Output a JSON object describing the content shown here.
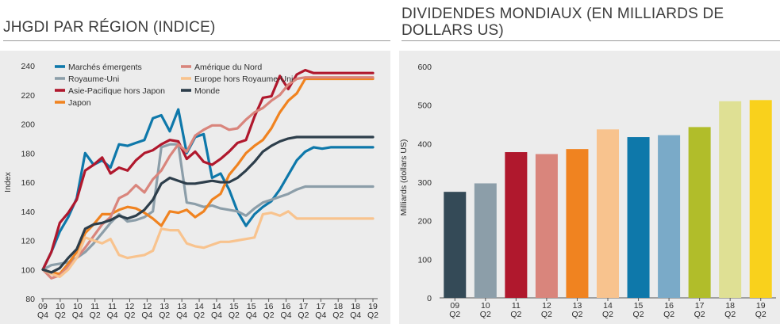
{
  "left_title": "JHGDI PAR RÉGION (INDICE)",
  "right_title": "DIVIDENDES MONDIAUX (EN MILLIARDS DE DOLLARS US)",
  "chart_data": [
    {
      "type": "line",
      "title": "JHGDI PAR RÉGION (INDICE)",
      "ylabel": "Index",
      "ylim": [
        80,
        240
      ],
      "yticks": [
        80,
        100,
        120,
        140,
        160,
        180,
        200,
        220,
        240
      ],
      "x_tick_labels": [
        [
          "09",
          "Q4"
        ],
        [
          "10",
          "Q2"
        ],
        [
          "10",
          "Q4"
        ],
        [
          "11",
          "Q2"
        ],
        [
          "11",
          "Q4"
        ],
        [
          "12",
          "Q2"
        ],
        [
          "12",
          "Q4"
        ],
        [
          "13",
          "Q2"
        ],
        [
          "13",
          "Q4"
        ],
        [
          "14",
          "Q2"
        ],
        [
          "14",
          "Q4"
        ],
        [
          "15",
          "Q2"
        ],
        [
          "15",
          "Q4"
        ],
        [
          "16",
          "Q2"
        ],
        [
          "16",
          "Q4"
        ],
        [
          "17",
          "Q2"
        ],
        [
          "17",
          "Q4"
        ],
        [
          "18",
          "Q2"
        ],
        [
          "18",
          "Q4"
        ],
        [
          "19",
          "Q2"
        ]
      ],
      "x": [
        0,
        0.5,
        1,
        1.5,
        2,
        2.5,
        3,
        3.5,
        4,
        4.5,
        5,
        5.5,
        6,
        6.5,
        7,
        7.5,
        8,
        8.5,
        9,
        9.5,
        10,
        10.5,
        11,
        11.5,
        12,
        12.5,
        13,
        13.5,
        14,
        14.5,
        15,
        15.5,
        16,
        16.5,
        17,
        17.5,
        18,
        18.5,
        19,
        19.5
      ],
      "legend_placement": "top-left",
      "series": [
        {
          "name": "Marchés émergents",
          "color": "#0e78aa",
          "values": [
            100,
            112,
            126,
            136,
            149,
            180,
            172,
            175,
            170,
            186,
            185,
            187,
            189,
            204,
            206,
            195,
            210,
            180,
            191,
            193,
            163,
            166,
            155,
            140,
            130,
            138,
            143,
            147,
            155,
            165,
            175,
            181,
            184,
            183,
            184,
            184,
            184,
            184,
            184,
            184
          ]
        },
        {
          "name": "Royaume-Uni",
          "color": "#8c9ea9",
          "values": [
            100,
            103,
            104,
            105,
            108,
            112,
            118,
            125,
            132,
            138,
            133,
            134,
            136,
            140,
            184,
            186,
            186,
            146,
            145,
            143,
            144,
            142,
            141,
            140,
            137,
            142,
            146,
            148,
            150,
            152,
            155,
            157,
            157,
            157,
            157,
            157,
            157,
            157,
            157,
            157
          ]
        },
        {
          "name": "Asie-Pacifique hors Japon",
          "color": "#b0182d",
          "values": [
            100,
            112,
            132,
            139,
            148,
            168,
            172,
            177,
            166,
            170,
            168,
            175,
            180,
            182,
            186,
            189,
            188,
            176,
            181,
            174,
            172,
            176,
            181,
            187,
            189,
            205,
            218,
            219,
            233,
            224,
            234,
            237,
            235,
            235,
            235,
            235,
            235,
            235,
            235,
            235
          ]
        },
        {
          "name": "Japon",
          "color": "#f08320",
          "values": [
            100,
            98,
            97,
            104,
            112,
            125,
            131,
            138,
            138,
            141,
            143,
            142,
            139,
            135,
            130,
            140,
            139,
            141,
            136,
            140,
            148,
            152,
            165,
            172,
            180,
            185,
            189,
            197,
            208,
            216,
            221,
            231,
            231,
            231,
            231,
            231,
            231,
            231,
            231,
            231
          ]
        },
        {
          "name": "Amérique du Nord",
          "color": "#d9857c",
          "values": [
            100,
            94,
            96,
            102,
            108,
            115,
            123,
            131,
            136,
            149,
            152,
            158,
            153,
            162,
            168,
            178,
            186,
            181,
            192,
            196,
            199,
            199,
            196,
            197,
            203,
            208,
            211,
            216,
            220,
            227,
            231,
            232,
            232,
            232,
            232,
            232,
            232,
            232,
            232,
            232
          ]
        },
        {
          "name": "Europe hors Royaume-Uni",
          "color": "#f8c38e",
          "values": [
            100,
            97,
            95,
            100,
            108,
            122,
            120,
            118,
            121,
            110,
            108,
            109,
            110,
            113,
            128,
            127,
            127,
            118,
            116,
            115,
            117,
            119,
            119,
            120,
            121,
            122,
            138,
            139,
            137,
            140,
            135,
            135,
            135,
            135,
            135,
            135,
            135,
            135,
            135,
            135
          ]
        },
        {
          "name": "Monde",
          "color": "#2d3e4b",
          "values": [
            100,
            98,
            101,
            108,
            114,
            128,
            131,
            132,
            134,
            137,
            135,
            137,
            141,
            148,
            159,
            163,
            161,
            159,
            159,
            160,
            161,
            160,
            160,
            163,
            168,
            174,
            181,
            185,
            188,
            190,
            191,
            191,
            191,
            191,
            191,
            191,
            191,
            191,
            191,
            191
          ]
        }
      ]
    },
    {
      "type": "bar",
      "title": "DIVIDENDES MONDIAUX (EN MILLIARDS DE DOLLARS US)",
      "ylabel": "Milliards (dollars US)",
      "ylim": [
        0,
        600
      ],
      "yticks": [
        0,
        100,
        200,
        300,
        400,
        500,
        600
      ],
      "categories": [
        [
          "09",
          "Q2"
        ],
        [
          "10",
          "Q2"
        ],
        [
          "11",
          "Q2"
        ],
        [
          "12",
          "Q2"
        ],
        [
          "13",
          "Q2"
        ],
        [
          "14",
          "Q2"
        ],
        [
          "15",
          "Q2"
        ],
        [
          "16",
          "Q2"
        ],
        [
          "17",
          "Q2"
        ],
        [
          "18",
          "Q2"
        ],
        [
          "19",
          "Q2"
        ]
      ],
      "values": [
        275,
        297,
        378,
        373,
        386,
        437,
        417,
        422,
        443,
        510,
        513
      ],
      "colors": [
        "#344a57",
        "#8c9ea9",
        "#b0182d",
        "#d9857c",
        "#f08320",
        "#f8c38e",
        "#0e78aa",
        "#7aaac8",
        "#b1bd2a",
        "#dfe094",
        "#f9d11c"
      ]
    }
  ]
}
